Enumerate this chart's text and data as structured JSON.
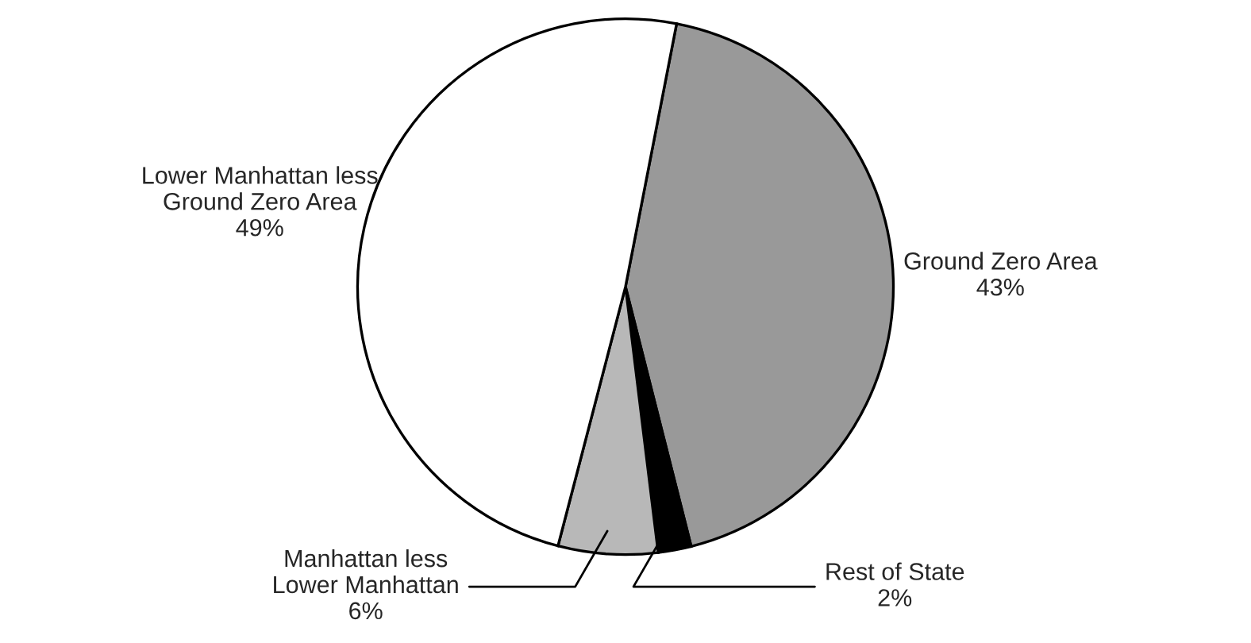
{
  "chart_data": {
    "type": "pie",
    "categories": [
      "Ground Zero Area",
      "Rest of State",
      "Manhattan less\nLower Manhattan",
      "Lower Manhattan less\nGround Zero Area"
    ],
    "values": [
      43,
      2,
      6,
      49
    ],
    "value_labels": [
      "43%",
      "2%",
      "6%",
      "49%"
    ],
    "colors": [
      "#999999",
      "#000000",
      "#b8b8b8",
      "#ffffff"
    ]
  }
}
